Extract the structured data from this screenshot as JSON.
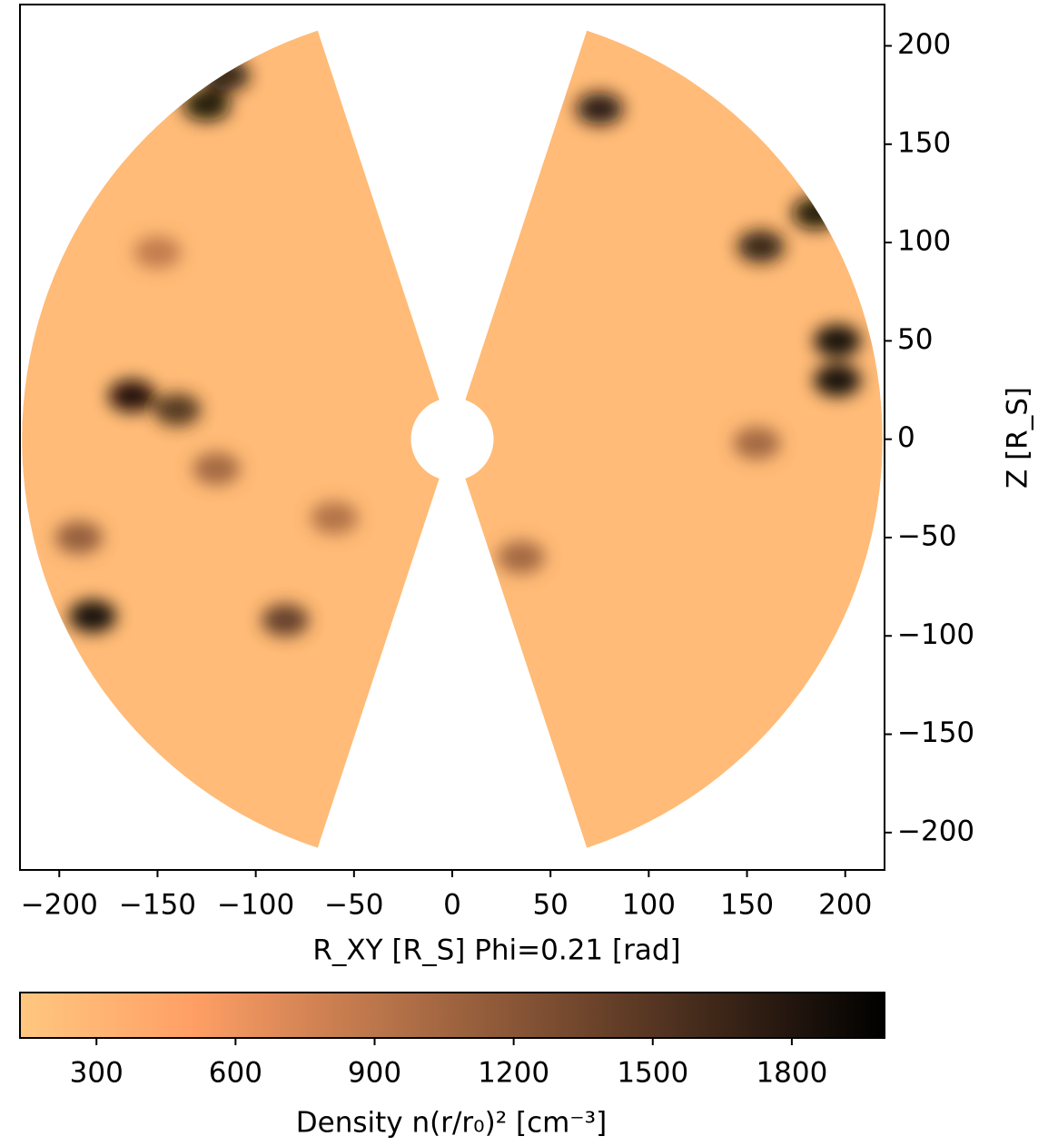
{
  "chart_data": {
    "type": "wedge-heatmap",
    "xlabel": "R_XY [R_S] Phi=0.21 [rad]",
    "ylabel": "Z [R_S]",
    "xlim": [
      -220,
      220
    ],
    "ylim": [
      -219,
      221
    ],
    "xticks": [
      {
        "value": -200,
        "label": "−200"
      },
      {
        "value": -150,
        "label": "−150"
      },
      {
        "value": -100,
        "label": "−100"
      },
      {
        "value": -50,
        "label": "−50"
      },
      0,
      50,
      100,
      150,
      200
    ],
    "yticks": [
      {
        "value": -200,
        "label": "−200"
      },
      {
        "value": -150,
        "label": "−150"
      },
      {
        "value": -100,
        "label": "−100"
      },
      {
        "value": -50,
        "label": "−50"
      },
      0,
      50,
      100,
      150,
      200
    ],
    "colormap": "copper_r",
    "clim": [
      135,
      2000
    ],
    "cticks": [
      300,
      600,
      900,
      1200,
      1500,
      1800
    ],
    "clabel": "Density n(r/r₀)² [cm⁻³]",
    "field": {
      "background": 250,
      "features": [
        {
          "x": -183,
          "y": -90,
          "value": 2000
        },
        {
          "x": -163,
          "y": 22,
          "value": 1950
        },
        {
          "x": -140,
          "y": 15,
          "value": 1600
        },
        {
          "x": -125,
          "y": 170,
          "value": 1900
        },
        {
          "x": -115,
          "y": 185,
          "value": 1800
        },
        {
          "x": -85,
          "y": -92,
          "value": 1500
        },
        {
          "x": -60,
          "y": -40,
          "value": 1000
        },
        {
          "x": -150,
          "y": 95,
          "value": 900
        },
        {
          "x": -120,
          "y": -15,
          "value": 1100
        },
        {
          "x": 75,
          "y": 168,
          "value": 1850
        },
        {
          "x": 157,
          "y": 98,
          "value": 1800
        },
        {
          "x": 185,
          "y": 115,
          "value": 1900
        },
        {
          "x": 196,
          "y": 50,
          "value": 2000
        },
        {
          "x": 196,
          "y": 30,
          "value": 2000
        },
        {
          "x": 155,
          "y": -2,
          "value": 1100
        },
        {
          "x": 35,
          "y": -60,
          "value": 1100
        },
        {
          "x": -190,
          "y": -50,
          "value": 1200
        }
      ]
    }
  }
}
